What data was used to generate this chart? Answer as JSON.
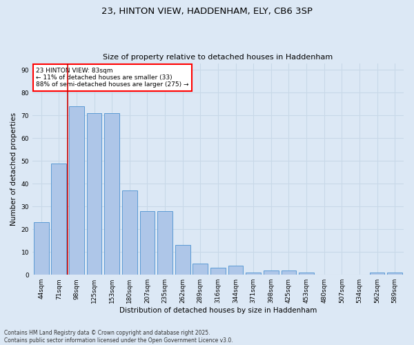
{
  "title_line1": "23, HINTON VIEW, HADDENHAM, ELY, CB6 3SP",
  "title_line2": "Size of property relative to detached houses in Haddenham",
  "xlabel": "Distribution of detached houses by size in Haddenham",
  "ylabel": "Number of detached properties",
  "categories": [
    "44sqm",
    "71sqm",
    "98sqm",
    "125sqm",
    "153sqm",
    "180sqm",
    "207sqm",
    "235sqm",
    "262sqm",
    "289sqm",
    "316sqm",
    "344sqm",
    "371sqm",
    "398sqm",
    "425sqm",
    "453sqm",
    "480sqm",
    "507sqm",
    "534sqm",
    "562sqm",
    "589sqm"
  ],
  "values": [
    23,
    49,
    74,
    71,
    71,
    37,
    28,
    28,
    13,
    5,
    3,
    4,
    1,
    2,
    2,
    1,
    0,
    0,
    0,
    1,
    1
  ],
  "bar_color": "#aec6e8",
  "bar_edge_color": "#5a9ad4",
  "grid_color": "#c8d8e8",
  "background_color": "#dce8f5",
  "vline_x": 1.5,
  "vline_color": "#cc0000",
  "annotation_text": "23 HINTON VIEW: 83sqm\n← 11% of detached houses are smaller (33)\n88% of semi-detached houses are larger (275) →",
  "footer_text": "Contains HM Land Registry data © Crown copyright and database right 2025.\nContains public sector information licensed under the Open Government Licence v3.0.",
  "ylim": [
    0,
    93
  ],
  "yticks": [
    0,
    10,
    20,
    30,
    40,
    50,
    60,
    70,
    80,
    90
  ]
}
